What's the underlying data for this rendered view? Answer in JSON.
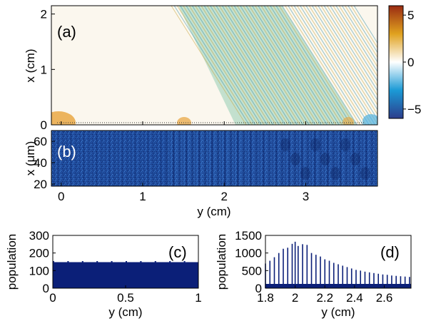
{
  "chart_data": [
    {
      "id": "a",
      "type": "heatmap",
      "panel_label": "(a)",
      "ylabel": "x (cm)",
      "ylim": [
        0,
        2.15
      ],
      "xlim": [
        -0.12,
        3.88
      ],
      "yticks": [
        0,
        1,
        2
      ],
      "colorbar": {
        "range": [
          -6,
          6
        ],
        "ticks": [
          5,
          0,
          -5
        ],
        "colors": [
          "#2c3d8c",
          "#1b9ad6",
          "#ffffff",
          "#e0a21f",
          "#9a2b12"
        ]
      },
      "colors": {
        "band": "#b9dcc8",
        "wave_a": "#2f8fa8",
        "wave_b": "#c7a236"
      }
    },
    {
      "id": "b",
      "type": "heatmap",
      "panel_label": "(b)",
      "ylabel": "x (μm)",
      "xlabel": "y (cm)",
      "ylim": [
        18,
        70
      ],
      "xlim": [
        -0.12,
        3.88
      ],
      "yticks": [
        20,
        40,
        60
      ],
      "xticks": [
        0,
        1,
        2,
        3
      ],
      "colors": {
        "base": "#1f4a9a",
        "dark": "#0b1f5c",
        "light": "#3f7fd0"
      }
    },
    {
      "id": "c",
      "type": "bar",
      "panel_label": "(c)",
      "xlabel": "y (cm)",
      "ylabel": "population",
      "xlim": [
        0,
        1
      ],
      "ylim": [
        0,
        300
      ],
      "xticks": [
        0,
        0.5,
        1
      ],
      "xtick_labels": [
        "0",
        "0.5",
        "1"
      ],
      "yticks": [
        0,
        100,
        200,
        300
      ],
      "level": 148,
      "color": "#0b1f78"
    },
    {
      "id": "d",
      "type": "bar",
      "panel_label": "(d)",
      "xlabel": "y (cm)",
      "ylabel": "population",
      "xlim": [
        1.8,
        2.78
      ],
      "ylim": [
        0,
        1500
      ],
      "xticks": [
        1.8,
        2,
        2.2,
        2.4,
        2.6
      ],
      "xtick_labels": [
        "1.8",
        "2",
        "2.2",
        "2.4",
        "2.6"
      ],
      "yticks": [
        0,
        500,
        1000,
        1500
      ],
      "peaks": [
        {
          "x": 1.8,
          "y": 700
        },
        {
          "x": 1.83,
          "y": 780
        },
        {
          "x": 1.86,
          "y": 880
        },
        {
          "x": 1.89,
          "y": 1000
        },
        {
          "x": 1.92,
          "y": 1120
        },
        {
          "x": 1.95,
          "y": 1150
        },
        {
          "x": 1.98,
          "y": 1260
        },
        {
          "x": 2.0,
          "y": 1320
        },
        {
          "x": 2.02,
          "y": 1200
        },
        {
          "x": 2.05,
          "y": 1250
        },
        {
          "x": 2.08,
          "y": 1230
        },
        {
          "x": 2.11,
          "y": 1000
        },
        {
          "x": 2.14,
          "y": 950
        },
        {
          "x": 2.17,
          "y": 900
        },
        {
          "x": 2.2,
          "y": 820
        },
        {
          "x": 2.23,
          "y": 780
        },
        {
          "x": 2.26,
          "y": 720
        },
        {
          "x": 2.29,
          "y": 680
        },
        {
          "x": 2.32,
          "y": 640
        },
        {
          "x": 2.35,
          "y": 600
        },
        {
          "x": 2.38,
          "y": 560
        },
        {
          "x": 2.41,
          "y": 520
        },
        {
          "x": 2.44,
          "y": 500
        },
        {
          "x": 2.47,
          "y": 470
        },
        {
          "x": 2.5,
          "y": 450
        },
        {
          "x": 2.53,
          "y": 430
        },
        {
          "x": 2.56,
          "y": 410
        },
        {
          "x": 2.59,
          "y": 390
        },
        {
          "x": 2.62,
          "y": 380
        },
        {
          "x": 2.65,
          "y": 360
        },
        {
          "x": 2.68,
          "y": 350
        },
        {
          "x": 2.71,
          "y": 340
        },
        {
          "x": 2.74,
          "y": 330
        },
        {
          "x": 2.77,
          "y": 320
        }
      ],
      "color": "#0b1f78"
    }
  ]
}
